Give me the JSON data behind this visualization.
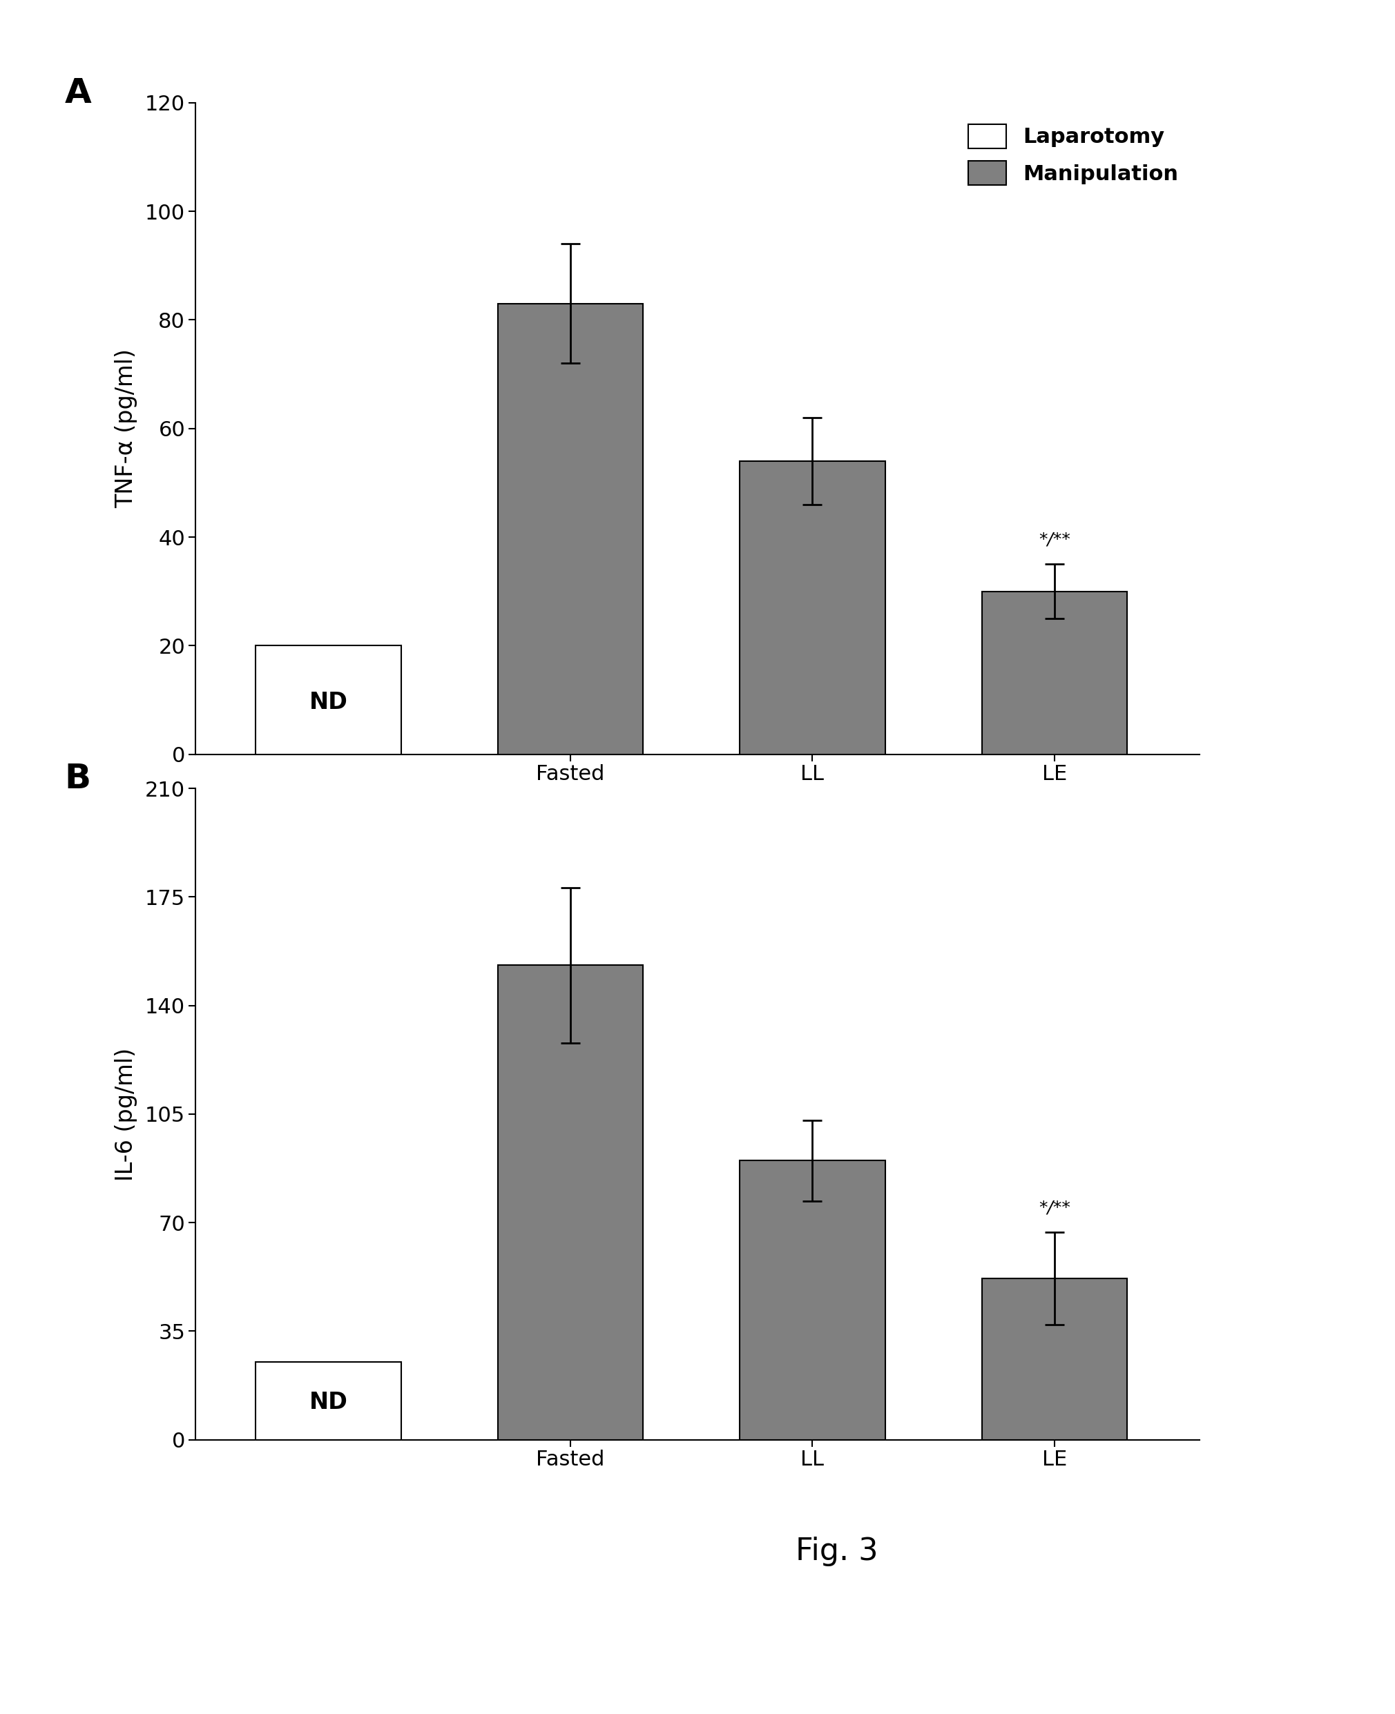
{
  "panel_A": {
    "label": "A",
    "ylabel": "TNF-α (pg/ml)",
    "ylim": [
      0,
      120
    ],
    "yticks": [
      0,
      20,
      40,
      60,
      80,
      100,
      120
    ],
    "categories": [
      "Fasted",
      "LL",
      "LE"
    ],
    "laparotomy_value": 20,
    "laparotomy_nd_label": "ND",
    "manipulation_values": [
      83,
      54,
      30
    ],
    "manipulation_errors": [
      11,
      8,
      5
    ],
    "le_annotation": "*/**",
    "bar_color": "#808080",
    "laparotomy_color": "#ffffff",
    "legend_labels": [
      "Laparotomy",
      "Manipulation"
    ]
  },
  "panel_B": {
    "label": "B",
    "ylabel": "IL-6 (pg/ml)",
    "ylim": [
      0,
      210
    ],
    "yticks": [
      0,
      35,
      70,
      105,
      140,
      175,
      210
    ],
    "categories": [
      "Fasted",
      "LL",
      "LE"
    ],
    "laparotomy_value": 25,
    "laparotomy_nd_label": "ND",
    "manipulation_values": [
      153,
      90,
      52
    ],
    "manipulation_errors": [
      25,
      13,
      15
    ],
    "le_annotation": "*/**",
    "bar_color": "#808080",
    "laparotomy_color": "#ffffff"
  },
  "fig_label": "Fig. 3",
  "background_color": "#ffffff",
  "bar_width": 0.6,
  "font_family": "DejaVu Sans",
  "label_fontsize": 24,
  "tick_fontsize": 22,
  "legend_fontsize": 22,
  "annotation_fontsize": 18,
  "panel_label_fontsize": 36
}
